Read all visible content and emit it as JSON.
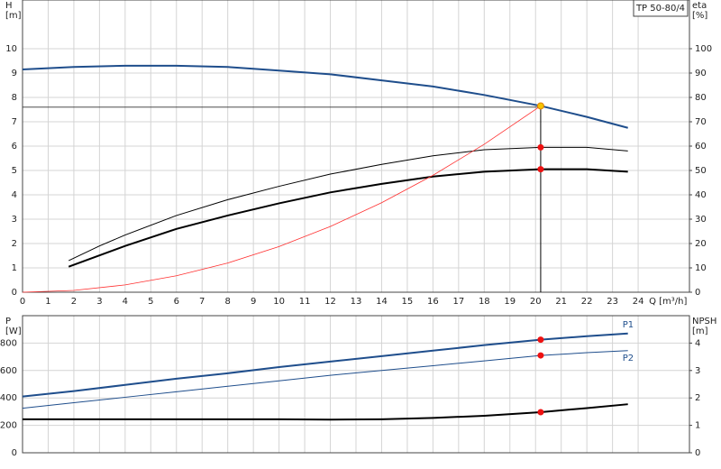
{
  "chart_data": [
    {
      "type": "line",
      "title": "TP 50-80/4",
      "x_label": "Q [m³/h]",
      "y_label": "H",
      "y_unit": "[m]",
      "y2_label": "eta",
      "y2_unit": "[%]",
      "xlim": [
        0,
        26
      ],
      "xticks": [
        0,
        1,
        2,
        3,
        4,
        5,
        6,
        7,
        8,
        9,
        10,
        11,
        12,
        13,
        14,
        15,
        16,
        17,
        18,
        19,
        20,
        21,
        22,
        23,
        24
      ],
      "ylim": [
        0,
        12
      ],
      "yticks": [
        0,
        1,
        2,
        3,
        4,
        5,
        6,
        7,
        8,
        9,
        10
      ],
      "y2lim": [
        0,
        120
      ],
      "y2ticks": [
        0,
        10,
        20,
        30,
        40,
        50,
        60,
        70,
        80,
        90,
        100
      ],
      "grid": true,
      "series": [
        {
          "color": "#1f4e8c",
          "width": 2,
          "x": [
            0,
            2,
            4,
            6,
            8,
            10,
            12,
            14,
            16,
            18,
            20.2,
            22,
            23.6
          ],
          "values": [
            9.15,
            9.25,
            9.3,
            9.3,
            9.25,
            9.1,
            8.95,
            8.7,
            8.45,
            8.1,
            7.65,
            7.2,
            6.75
          ]
        },
        {
          "color": "#000000",
          "width": 1,
          "axis": "y2",
          "x": [
            1.8,
            3,
            4,
            6,
            8,
            10,
            12,
            14,
            16,
            18,
            20.2,
            22,
            23.6
          ],
          "values": [
            13,
            19,
            23.5,
            31.5,
            38,
            43.5,
            48.5,
            52.5,
            56,
            58.5,
            59.5,
            59.5,
            58
          ]
        },
        {
          "color": "#000000",
          "width": 2,
          "axis": "y2",
          "x": [
            1.8,
            4,
            6,
            8,
            10,
            12,
            14,
            16,
            18,
            20.2,
            22,
            23.6
          ],
          "values": [
            10.5,
            19,
            26,
            31.5,
            36.5,
            41,
            44.5,
            47.5,
            49.5,
            50.5,
            50.5,
            49.5
          ]
        },
        {
          "color": "#ff3030",
          "width": 0.8,
          "x": [
            0,
            2,
            4,
            6,
            8,
            10,
            12,
            14,
            16,
            18,
            20.2
          ],
          "values": [
            0,
            0.075,
            0.3,
            0.675,
            1.2,
            1.875,
            2.7,
            3.675,
            4.8,
            6.075,
            7.65
          ]
        }
      ],
      "crosshair": {
        "x": 20.2,
        "y": 7.6
      },
      "points": [
        {
          "x": 20.2,
          "y": 7.65,
          "color": "#f5c400"
        },
        {
          "x": 20.2,
          "y": 59.5,
          "axis": "y2",
          "color": "#ee1111"
        },
        {
          "x": 20.2,
          "y": 50.5,
          "axis": "y2",
          "color": "#ee1111"
        }
      ]
    },
    {
      "type": "line",
      "y_label": "P",
      "y_unit": "[W]",
      "y2_label": "NPSH",
      "y2_unit": "[m]",
      "xlim": [
        0,
        26
      ],
      "xticks": [
        0,
        1,
        2,
        3,
        4,
        5,
        6,
        7,
        8,
        9,
        10,
        11,
        12,
        13,
        14,
        15,
        16,
        17,
        18,
        19,
        20,
        21,
        22,
        23,
        24
      ],
      "ylim": [
        0,
        1000
      ],
      "yticks": [
        0,
        200,
        400,
        600,
        800
      ],
      "y2lim": [
        0,
        5
      ],
      "y2ticks": [
        0,
        1,
        2,
        3,
        4
      ],
      "grid": true,
      "series": [
        {
          "name": "P1",
          "color": "#1f4e8c",
          "width": 2,
          "x": [
            0,
            2,
            4,
            6,
            8,
            10,
            12,
            14,
            16,
            18,
            20.2,
            22,
            23.6
          ],
          "values": [
            410,
            450,
            495,
            540,
            580,
            625,
            665,
            705,
            745,
            785,
            825,
            850,
            870
          ]
        },
        {
          "name": "P2",
          "color": "#1f4e8c",
          "width": 1,
          "x": [
            0,
            2,
            4,
            6,
            8,
            10,
            12,
            14,
            16,
            18,
            20.2,
            22,
            23.6
          ],
          "values": [
            325,
            365,
            405,
            445,
            485,
            525,
            565,
            600,
            635,
            670,
            710,
            730,
            745
          ]
        },
        {
          "color": "#000000",
          "width": 2,
          "axis": "y2",
          "x": [
            0,
            2,
            4,
            6,
            8,
            10,
            12,
            14,
            16,
            18,
            20.2,
            22,
            23.6
          ],
          "values": [
            1.22,
            1.22,
            1.22,
            1.22,
            1.22,
            1.22,
            1.21,
            1.22,
            1.27,
            1.35,
            1.48,
            1.63,
            1.77
          ]
        }
      ],
      "points": [
        {
          "x": 20.2,
          "y": 825,
          "color": "#ee1111"
        },
        {
          "x": 20.2,
          "y": 710,
          "color": "#ee1111"
        },
        {
          "x": 20.2,
          "y": 1.48,
          "axis": "y2",
          "color": "#ee1111"
        }
      ]
    }
  ]
}
